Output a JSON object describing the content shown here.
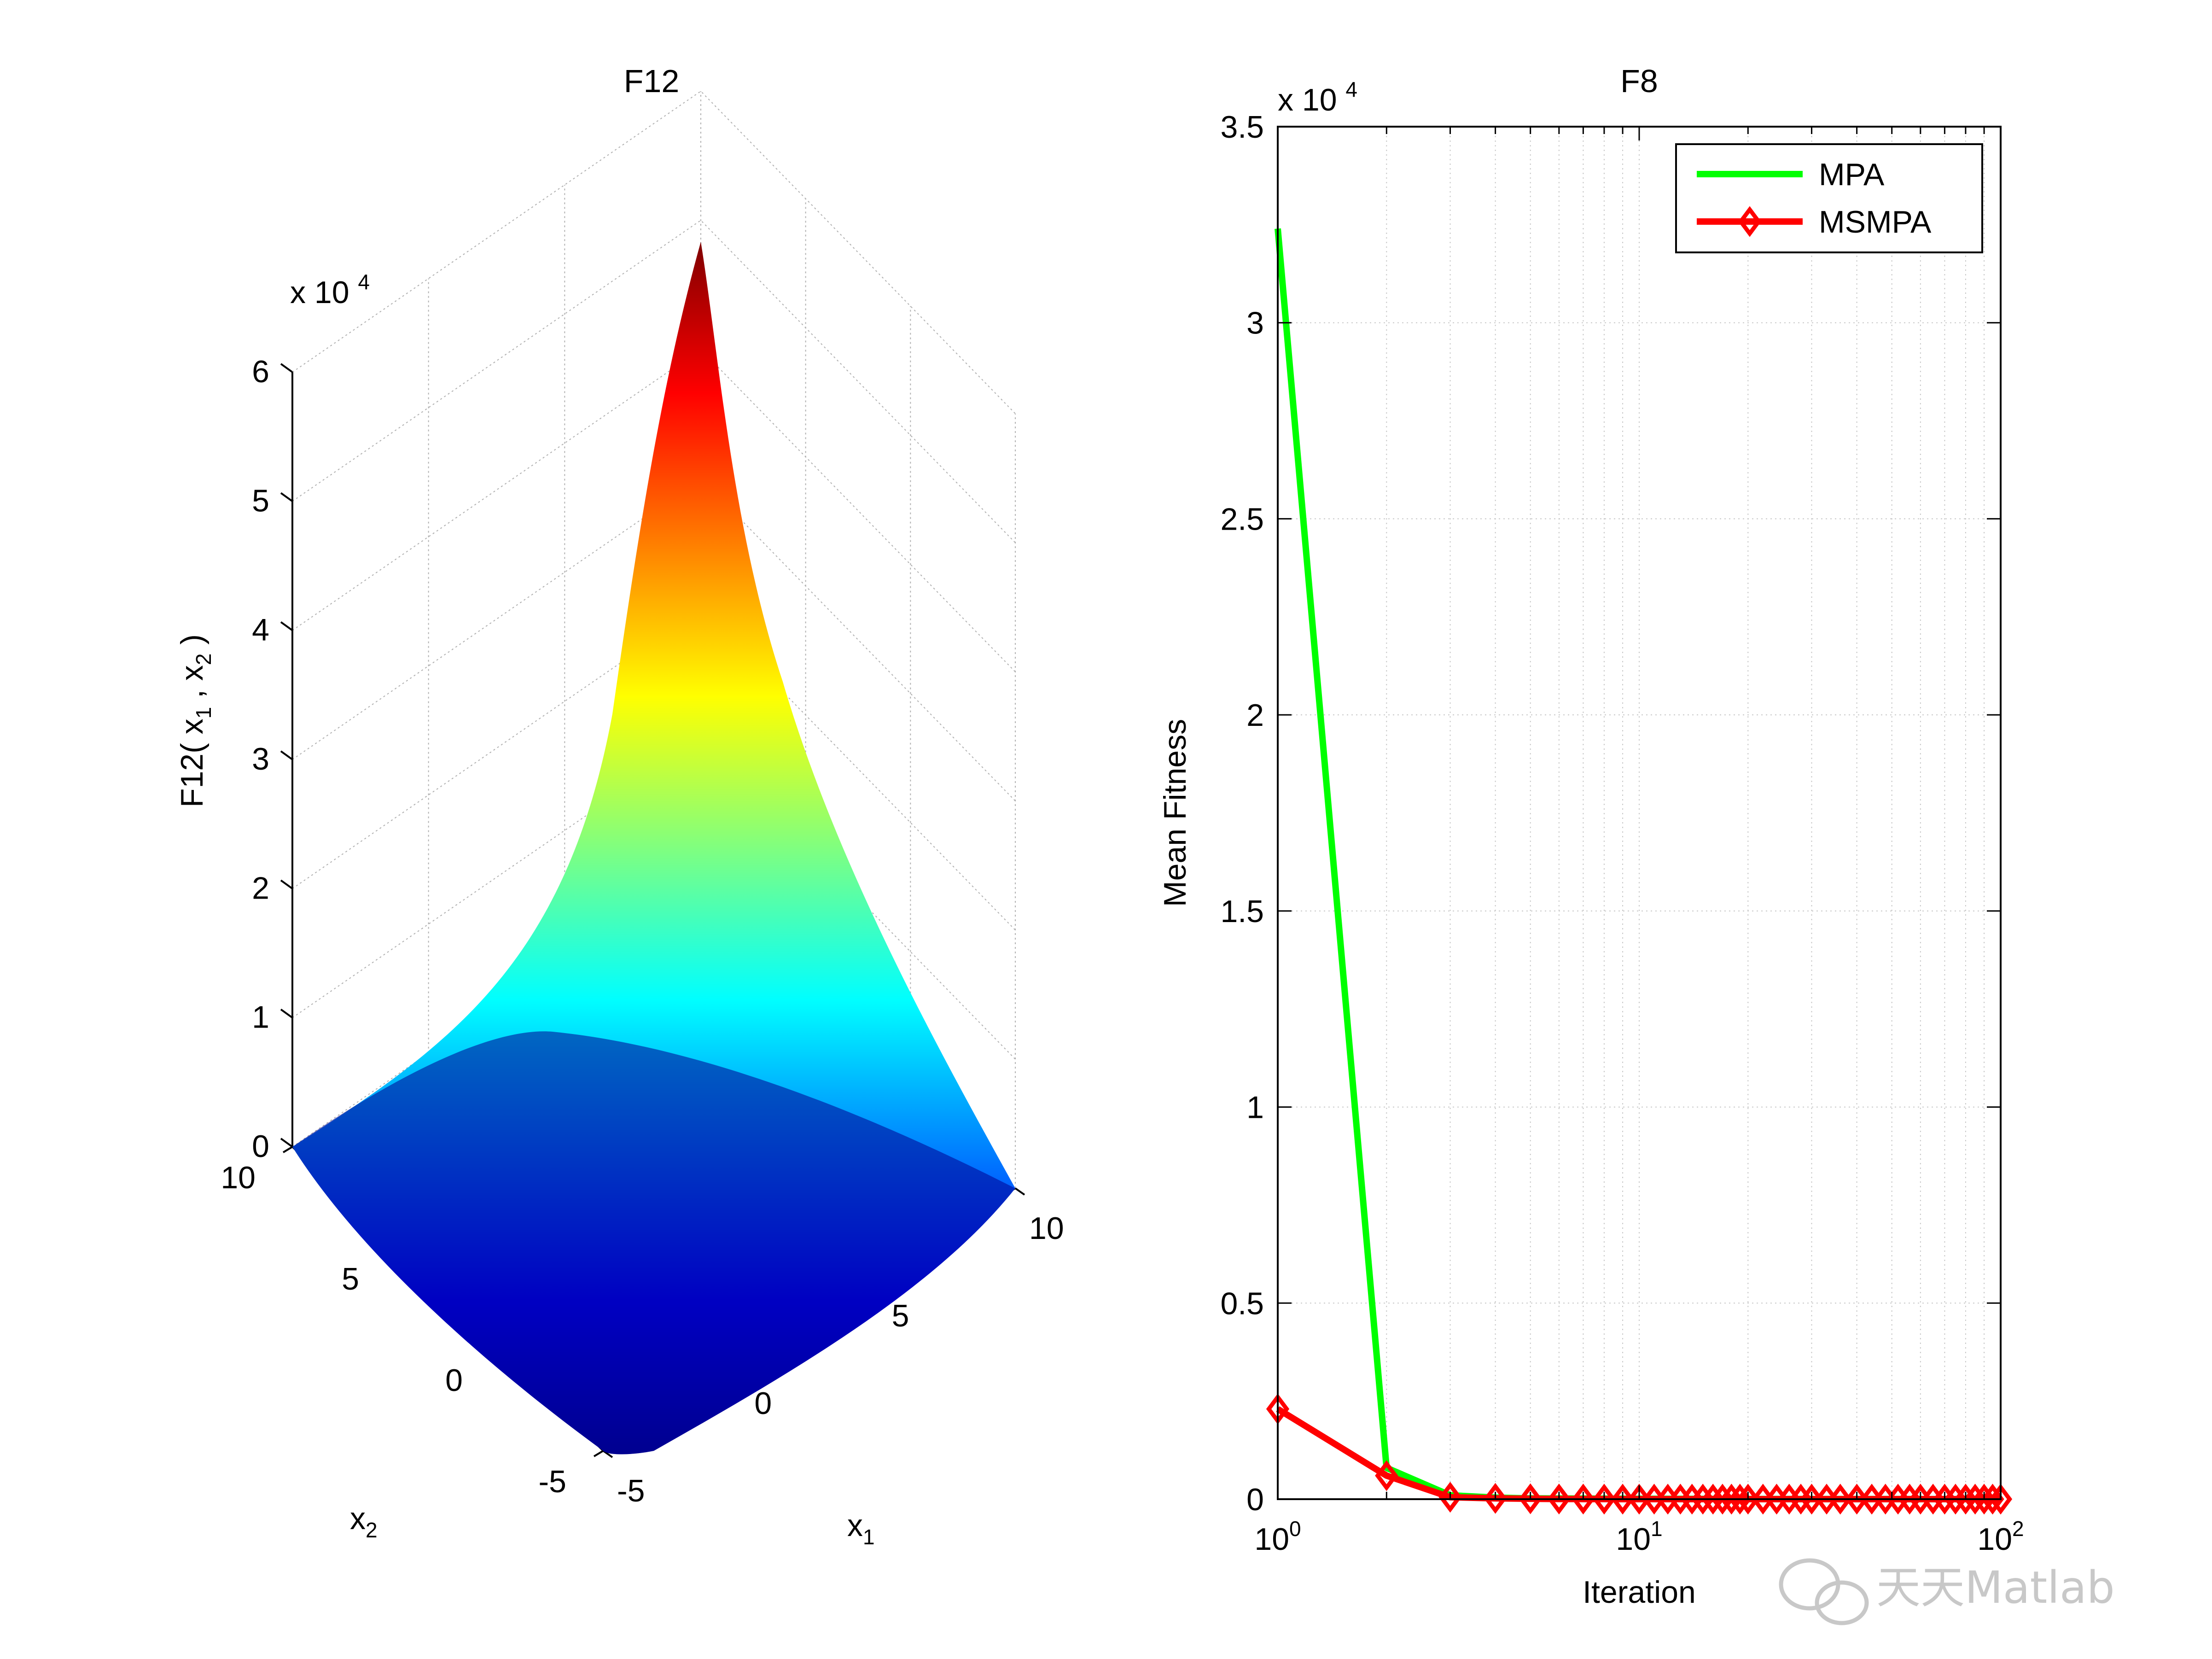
{
  "chart_data": [
    {
      "type": "surface",
      "title": "F12",
      "xlabel": "x",
      "xlabel_sub": "1",
      "ylabel": "x",
      "ylabel_sub": "2",
      "zlabel": "F12( x",
      "zlabel_sub1": "1",
      "zlabel_mid": " , x",
      "zlabel_sub2": "2",
      "zlabel_end": " )",
      "x_ticks": [
        "-5",
        "0",
        "5",
        "10"
      ],
      "y_ticks": [
        "-5",
        "0",
        "5",
        "10"
      ],
      "z_ticks": [
        "0",
        "1",
        "2",
        "3",
        "4",
        "5",
        "6"
      ],
      "z_multiplier": "x 10",
      "z_multiplier_exp": "4",
      "xlim": [
        -5,
        10
      ],
      "ylim": [
        -5,
        10
      ],
      "zlim": [
        0,
        60000
      ],
      "colormap": "jet",
      "grid": true
    },
    {
      "type": "line",
      "title": "F8",
      "xlabel": "Iteration",
      "ylabel": "Mean Fitness",
      "xscale": "log",
      "xlim": [
        1,
        100
      ],
      "ylim": [
        0,
        35000
      ],
      "y_ticks": [
        "0",
        "0.5",
        "1",
        "1.5",
        "2",
        "2.5",
        "3",
        "3.5"
      ],
      "y_tick_values": [
        0,
        5000,
        10000,
        15000,
        20000,
        25000,
        30000,
        35000
      ],
      "y_multiplier": "x 10",
      "y_multiplier_exp": "4",
      "x_tick_values": [
        1,
        10,
        100
      ],
      "x_ticks": [
        {
          "base": "10",
          "exp": "0"
        },
        {
          "base": "10",
          "exp": "1"
        },
        {
          "base": "10",
          "exp": "2"
        }
      ],
      "grid": true,
      "legend": "top-right",
      "series": [
        {
          "name": "MPA",
          "color": "#00ff00",
          "marker": "none",
          "x": [
            1,
            2,
            3,
            4,
            5,
            10,
            20,
            50,
            100
          ],
          "y": [
            32400,
            800,
            100,
            40,
            20,
            10,
            5,
            2,
            1
          ]
        },
        {
          "name": "MSMPA",
          "color": "#ff0000",
          "marker": "diamond",
          "x": [
            1,
            2,
            3,
            4,
            5,
            6,
            7,
            8,
            9,
            10,
            11,
            12,
            13,
            14,
            15,
            16,
            17,
            18,
            19,
            20,
            22,
            24,
            26,
            28,
            30,
            33,
            36,
            40,
            44,
            48,
            52,
            56,
            60,
            65,
            70,
            75,
            80,
            85,
            90,
            95,
            100
          ],
          "y": [
            2300,
            600,
            50,
            20,
            10,
            5,
            3,
            2,
            1,
            1,
            1,
            1,
            1,
            1,
            1,
            1,
            1,
            1,
            1,
            1,
            1,
            1,
            1,
            1,
            1,
            1,
            1,
            1,
            1,
            1,
            1,
            1,
            1,
            1,
            1,
            1,
            1,
            1,
            1,
            1,
            1
          ]
        }
      ]
    }
  ],
  "watermark": "天天Matlab",
  "watermark_icon": "wechat-icon"
}
